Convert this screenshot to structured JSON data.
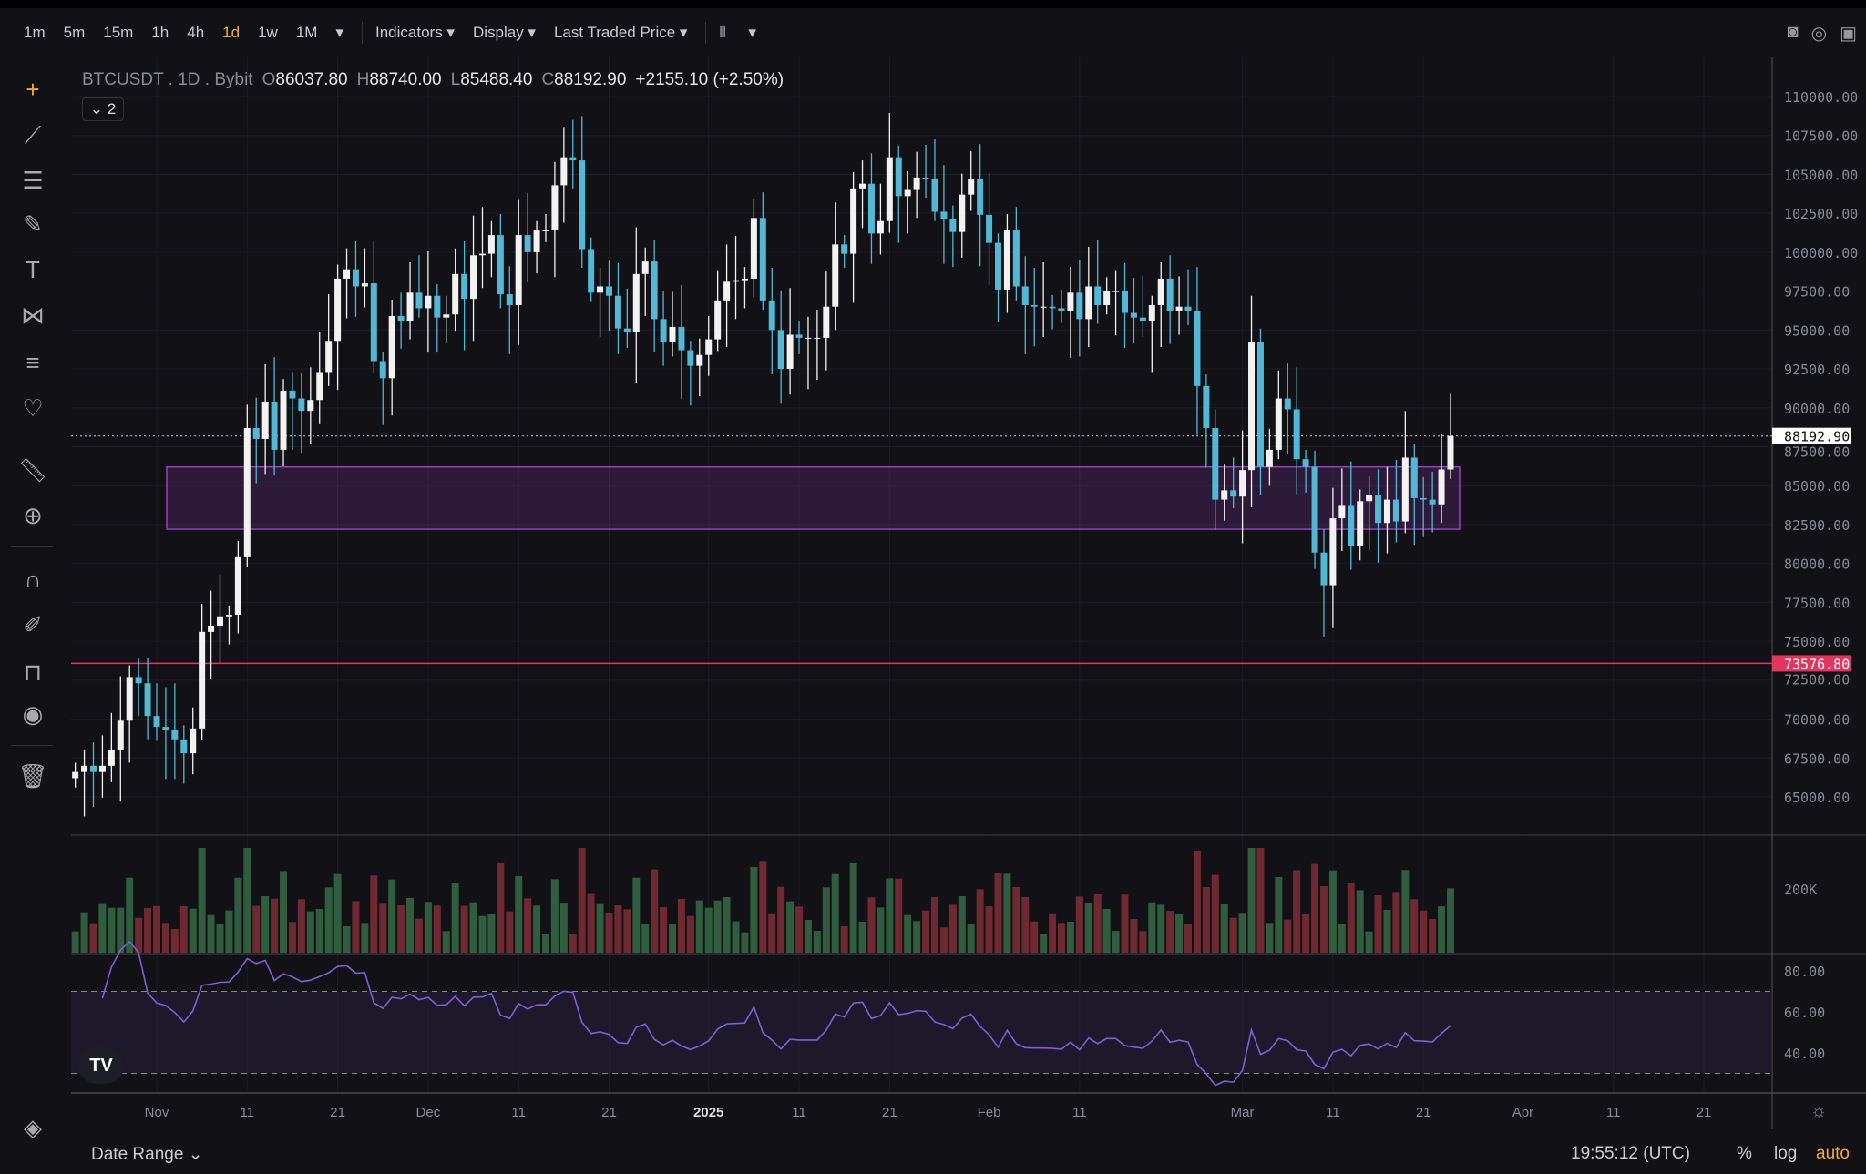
{
  "toolbar": {
    "timeframes": [
      "1m",
      "5m",
      "15m",
      "1h",
      "4h",
      "1d",
      "1w",
      "1M"
    ],
    "active": "1d",
    "more": "▾",
    "indicators": "Indicators ▾",
    "display": "Display ▾",
    "price_type": "Last Traded Price ▾",
    "chart_type": "candles ▾"
  },
  "legend": {
    "symbol": "BTCUSDT . 1D . Bybit",
    "o_label": "O",
    "o": "86037.80",
    "h_label": "H",
    "h": "88740.00",
    "l_label": "L",
    "l": "85488.40",
    "c_label": "C",
    "c": "88192.90",
    "change": "+2155.10 (+2.50%)",
    "collapse": "⌄ 2"
  },
  "price_axis": {
    "ticks": [
      "110000.00",
      "107500.00",
      "105000.00",
      "102500.00",
      "100000.00",
      "97500.00",
      "95000.00",
      "92500.00",
      "90000.00",
      "87500.00",
      "85000.00",
      "82500.00",
      "80000.00",
      "77500.00",
      "75000.00",
      "72500.00",
      "70000.00",
      "67500.00",
      "65000.00"
    ],
    "current": "88192.90",
    "alert": "73576.80"
  },
  "volume_axis": {
    "tick": "200K"
  },
  "rsi_axis": {
    "ticks": [
      "80.00",
      "60.00",
      "40.00"
    ]
  },
  "time_axis": [
    {
      "label": "Nov",
      "day": 9
    },
    {
      "label": "11",
      "day": 19
    },
    {
      "label": "21",
      "day": 29
    },
    {
      "label": "Dec",
      "day": 39
    },
    {
      "label": "11",
      "day": 49
    },
    {
      "label": "21",
      "day": 59
    },
    {
      "label": "2025",
      "day": 70
    },
    {
      "label": "11",
      "day": 80
    },
    {
      "label": "21",
      "day": 90
    },
    {
      "label": "Feb",
      "day": 101
    },
    {
      "label": "11",
      "day": 111
    },
    {
      "label": "Mar",
      "day": 129
    },
    {
      "label": "11",
      "day": 139
    },
    {
      "label": "21",
      "day": 149
    },
    {
      "label": "Apr",
      "day": 160
    },
    {
      "label": "11",
      "day": 170
    },
    {
      "label": "21",
      "day": 180
    }
  ],
  "bottom": {
    "date_range": "Date Range ⌄",
    "clock": "19:55:12 (UTC)",
    "percent": "%",
    "log": "log",
    "auto": "auto"
  },
  "colors": {
    "up": "#f2f2f2",
    "down": "#52b8d6",
    "vol_up": "#2f5d3e",
    "vol_down": "#6e2a30",
    "rsi": "#7e5fd6",
    "zone": "#9b3fc4",
    "alert": "#e0365f"
  },
  "chart_data": {
    "type": "candlestick",
    "symbol": "BTCUSDT",
    "interval": "1D",
    "start": "Oct 23",
    "zone": [
      82200,
      86200
    ],
    "alert_price": 73576.8,
    "closes": [
      66.6,
      67.0,
      66.6,
      67.0,
      68.0,
      69.9,
      72.7,
      72.3,
      70.2,
      69.5,
      69.3,
      68.7,
      67.8,
      69.4,
      75.6,
      76.0,
      76.6,
      76.7,
      80.4,
      88.7,
      88.0,
      90.4,
      87.3,
      91.1,
      90.6,
      89.8,
      90.5,
      92.3,
      94.3,
      98.3,
      98.9,
      97.8,
      98.0,
      93.0,
      91.9,
      95.9,
      95.6,
      97.4,
      96.4,
      97.2,
      95.8,
      96.0,
      98.6,
      97.0,
      99.8,
      99.9,
      101.1,
      97.3,
      96.6,
      101.1,
      100.0,
      101.4,
      101.4,
      104.3,
      106.1,
      105.9,
      100.2,
      97.4,
      97.8,
      97.2,
      95.1,
      94.9,
      98.6,
      99.4,
      95.7,
      94.2,
      95.2,
      93.7,
      92.7,
      93.4,
      94.4,
      96.9,
      98.1,
      98.2,
      98.3,
      102.2,
      96.9,
      95.0,
      92.5,
      94.7,
      94.5,
      94.5,
      94.5,
      96.5,
      100.5,
      99.9,
      104.1,
      104.4,
      101.2,
      102.0,
      106.1,
      103.6,
      104.0,
      104.8,
      104.7,
      102.6,
      102.1,
      101.3,
      103.7,
      104.7,
      102.4,
      100.6,
      97.6,
      101.4,
      97.8,
      96.6,
      96.5,
      96.5,
      96.4,
      96.2,
      97.4,
      95.7,
      97.8,
      96.6,
      97.5,
      97.5,
      96.1,
      95.8,
      95.6,
      96.6,
      98.3,
      96.2,
      96.5,
      96.2,
      91.4,
      88.7,
      84.1,
      84.7,
      84.3,
      86.0,
      94.2,
      86.2,
      87.3,
      90.6,
      89.9,
      86.7,
      86.2,
      80.7,
      78.6,
      82.9,
      83.7,
      81.1,
      84.0,
      84.4,
      82.6,
      84.1,
      82.7,
      86.8,
      84.2,
      84.1,
      83.8,
      86.04,
      88.19
    ]
  }
}
